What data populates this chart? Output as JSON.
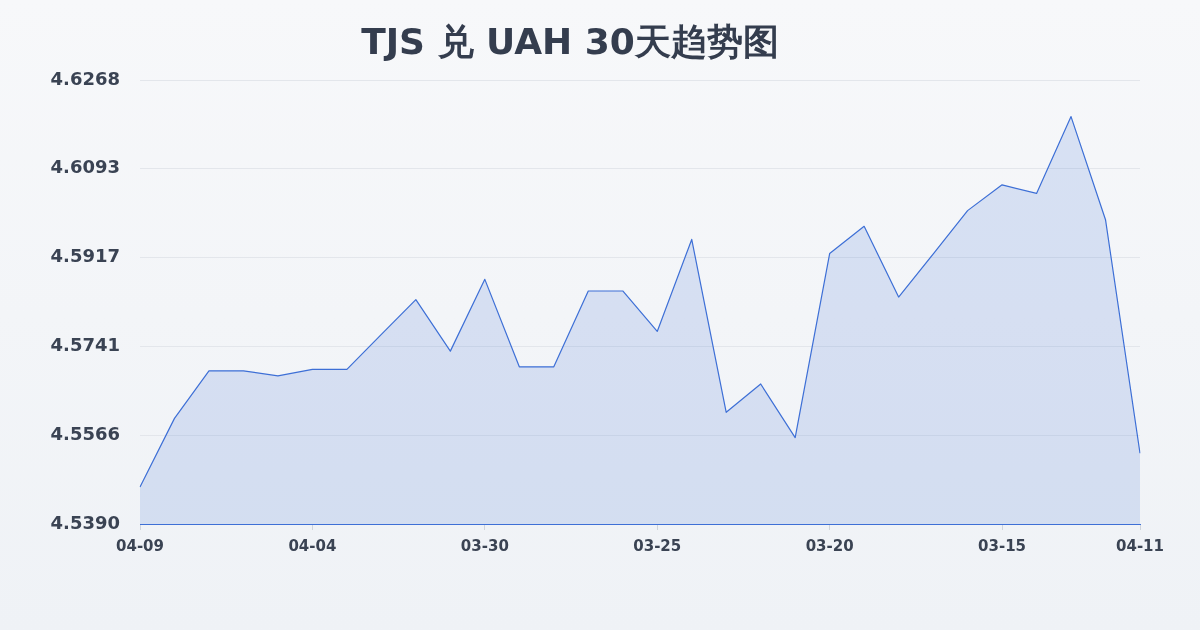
{
  "chart_data": {
    "type": "area",
    "title": "TJS 兑 UAH 30天趋势图",
    "categories": [
      "04-09",
      null,
      null,
      null,
      null,
      "04-04",
      null,
      null,
      null,
      null,
      "03-30",
      null,
      null,
      null,
      null,
      "03-25",
      null,
      null,
      null,
      null,
      "03-20",
      null,
      null,
      null,
      null,
      "03-15",
      null,
      null,
      null,
      "04-11"
    ],
    "series": [
      {
        "color": "#3d6fd6",
        "values": [
          4.5463,
          4.5599,
          4.5693,
          4.5693,
          4.5683,
          4.5696,
          4.5696,
          4.5765,
          4.5834,
          4.5732,
          4.5874,
          4.5701,
          4.5701,
          4.5851,
          4.5851,
          4.5771,
          4.5953,
          4.5611,
          4.5667,
          4.5561,
          4.5925,
          4.5979,
          4.5839,
          4.5924,
          4.601,
          4.6061,
          4.6044,
          4.6196,
          4.5992,
          4.553
        ]
      }
    ],
    "ylim": [
      4.539,
      4.6268
    ],
    "yticks": [
      {
        "value": 4.539,
        "label": "4.5390"
      },
      4.5566,
      4.5741,
      4.5917,
      4.6093,
      4.6268
    ],
    "grid": "y",
    "marker": "none"
  }
}
